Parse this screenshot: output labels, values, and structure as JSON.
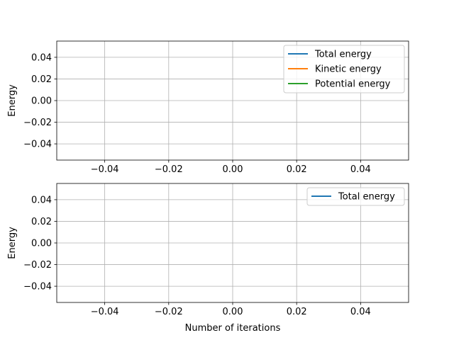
{
  "chart_data": [
    {
      "type": "line",
      "title": "",
      "xlabel": "",
      "ylabel": "Energy",
      "xlim": [
        -0.055,
        0.055
      ],
      "ylim": [
        -0.055,
        0.055
      ],
      "xticks": [
        -0.04,
        -0.02,
        0.0,
        0.02,
        0.04
      ],
      "yticks": [
        -0.04,
        -0.02,
        0.0,
        0.02,
        0.04
      ],
      "xtick_labels": [
        "−0.04",
        "−0.02",
        "0.00",
        "0.02",
        "0.04"
      ],
      "ytick_labels": [
        "−0.04",
        "−0.02",
        "0.00",
        "0.02",
        "0.04"
      ],
      "grid": true,
      "legend_position": "upper-right",
      "series": [
        {
          "name": "Total energy",
          "color": "#1f77b4",
          "x": [],
          "y": []
        },
        {
          "name": "Kinetic energy",
          "color": "#ff7f0e",
          "x": [],
          "y": []
        },
        {
          "name": "Potential energy",
          "color": "#2ca02c",
          "x": [],
          "y": []
        }
      ]
    },
    {
      "type": "line",
      "title": "",
      "xlabel": "Number of iterations",
      "ylabel": "Energy",
      "xlim": [
        -0.055,
        0.055
      ],
      "ylim": [
        -0.055,
        0.055
      ],
      "xticks": [
        -0.04,
        -0.02,
        0.0,
        0.02,
        0.04
      ],
      "yticks": [
        -0.04,
        -0.02,
        0.0,
        0.02,
        0.04
      ],
      "xtick_labels": [
        "−0.04",
        "−0.02",
        "0.00",
        "0.02",
        "0.04"
      ],
      "ytick_labels": [
        "−0.04",
        "−0.02",
        "0.00",
        "0.02",
        "0.04"
      ],
      "grid": true,
      "legend_position": "upper-right",
      "series": [
        {
          "name": "Total energy",
          "color": "#1f77b4",
          "x": [],
          "y": []
        }
      ]
    }
  ]
}
